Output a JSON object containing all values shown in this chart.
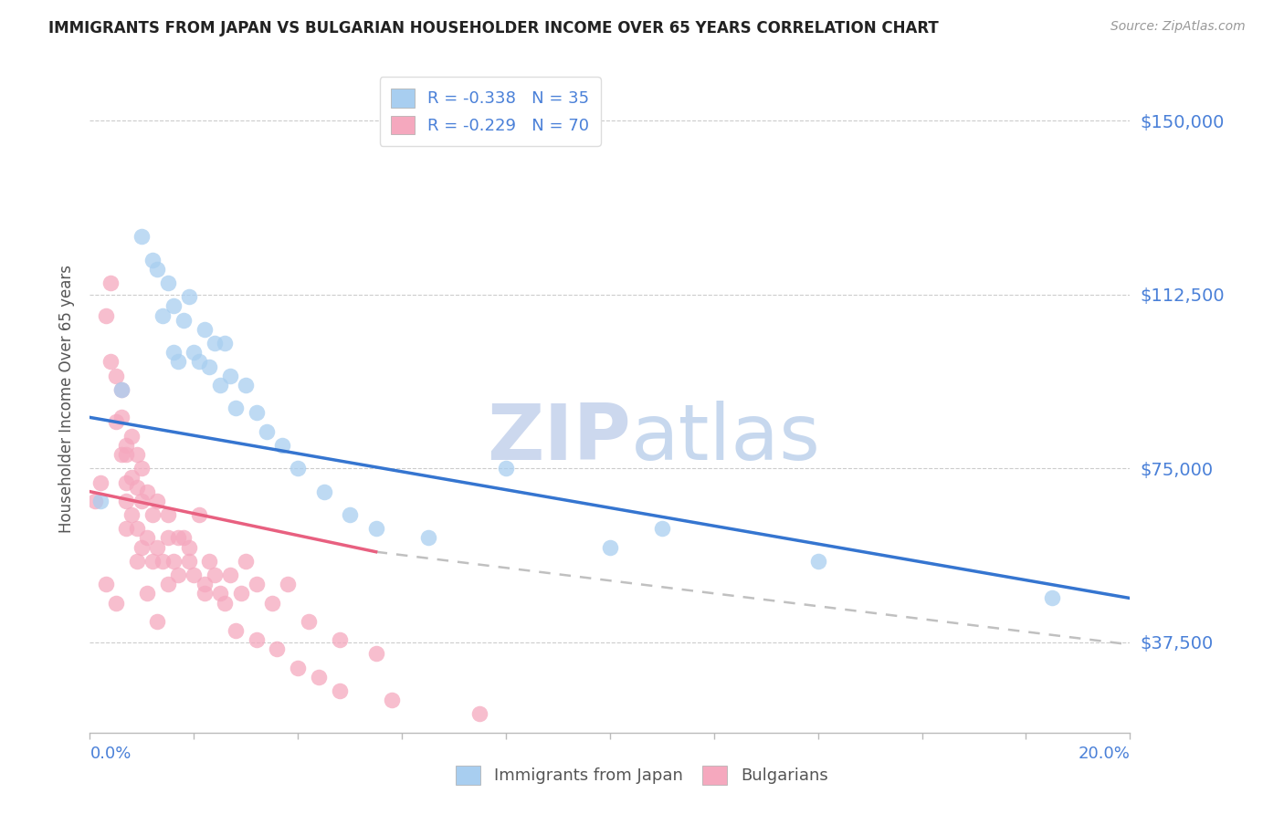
{
  "title": "IMMIGRANTS FROM JAPAN VS BULGARIAN HOUSEHOLDER INCOME OVER 65 YEARS CORRELATION CHART",
  "source": "Source: ZipAtlas.com",
  "ylabel": "Householder Income Over 65 years",
  "xmin": 0.0,
  "xmax": 0.2,
  "ymin": 18000,
  "ymax": 162000,
  "yticks": [
    37500,
    75000,
    112500,
    150000
  ],
  "ytick_labels": [
    "$37,500",
    "$75,000",
    "$112,500",
    "$150,000"
  ],
  "legend1_r": "R = -0.338",
  "legend1_n": "N = 35",
  "legend2_r": "R = -0.229",
  "legend2_n": "N = 70",
  "color_japan": "#a8cef0",
  "color_bulgarian": "#f5a8be",
  "color_japan_line": "#3575d0",
  "color_bulgarian_line": "#e86080",
  "color_dashed": "#c0c0c0",
  "color_title": "#222222",
  "color_axis": "#4a80d8",
  "color_watermark": "#ccd8ee",
  "japan_line_x0": 0.0,
  "japan_line_y0": 86000,
  "japan_line_x1": 0.2,
  "japan_line_y1": 47000,
  "bulgarian_line_x0": 0.0,
  "bulgarian_line_y0": 70000,
  "bulgarian_line_x1_solid": 0.055,
  "bulgarian_line_y1_solid": 57000,
  "bulgarian_line_x1_dash": 0.2,
  "bulgarian_line_y1_dash": 37000,
  "japan_x": [
    0.002,
    0.006,
    0.01,
    0.012,
    0.013,
    0.014,
    0.015,
    0.016,
    0.016,
    0.017,
    0.018,
    0.019,
    0.02,
    0.021,
    0.022,
    0.023,
    0.024,
    0.025,
    0.026,
    0.027,
    0.028,
    0.03,
    0.032,
    0.034,
    0.037,
    0.04,
    0.045,
    0.05,
    0.055,
    0.065,
    0.08,
    0.1,
    0.11,
    0.14,
    0.185
  ],
  "japan_y": [
    68000,
    92000,
    125000,
    120000,
    118000,
    108000,
    115000,
    110000,
    100000,
    98000,
    107000,
    112000,
    100000,
    98000,
    105000,
    97000,
    102000,
    93000,
    102000,
    95000,
    88000,
    93000,
    87000,
    83000,
    80000,
    75000,
    70000,
    65000,
    62000,
    60000,
    75000,
    58000,
    62000,
    55000,
    47000
  ],
  "bulgarian_x": [
    0.001,
    0.002,
    0.003,
    0.004,
    0.004,
    0.005,
    0.005,
    0.006,
    0.006,
    0.006,
    0.007,
    0.007,
    0.007,
    0.007,
    0.008,
    0.008,
    0.008,
    0.009,
    0.009,
    0.009,
    0.01,
    0.01,
    0.01,
    0.011,
    0.011,
    0.012,
    0.012,
    0.013,
    0.013,
    0.014,
    0.015,
    0.015,
    0.016,
    0.017,
    0.018,
    0.019,
    0.02,
    0.021,
    0.022,
    0.023,
    0.025,
    0.027,
    0.029,
    0.03,
    0.032,
    0.035,
    0.038,
    0.042,
    0.048,
    0.055,
    0.003,
    0.005,
    0.007,
    0.009,
    0.011,
    0.013,
    0.015,
    0.017,
    0.019,
    0.022,
    0.024,
    0.026,
    0.028,
    0.032,
    0.036,
    0.04,
    0.044,
    0.048,
    0.058,
    0.075
  ],
  "bulgarian_y": [
    68000,
    72000,
    108000,
    98000,
    115000,
    85000,
    95000,
    78000,
    86000,
    92000,
    72000,
    80000,
    68000,
    78000,
    65000,
    73000,
    82000,
    62000,
    71000,
    78000,
    58000,
    68000,
    75000,
    60000,
    70000,
    55000,
    65000,
    58000,
    68000,
    55000,
    50000,
    60000,
    55000,
    52000,
    60000,
    58000,
    52000,
    65000,
    50000,
    55000,
    48000,
    52000,
    48000,
    55000,
    50000,
    46000,
    50000,
    42000,
    38000,
    35000,
    50000,
    46000,
    62000,
    55000,
    48000,
    42000,
    65000,
    60000,
    55000,
    48000,
    52000,
    46000,
    40000,
    38000,
    36000,
    32000,
    30000,
    27000,
    25000,
    22000
  ]
}
